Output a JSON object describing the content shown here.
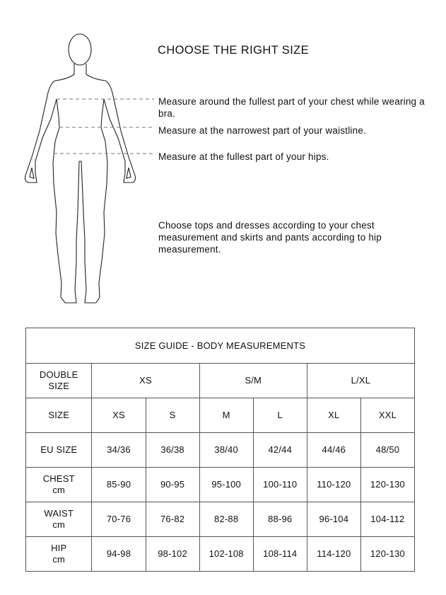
{
  "title": "CHOOSE THE RIGHT SIZE",
  "instructions": {
    "chest": "Measure around the fullest part of your chest while wearing a bra.",
    "waist": "Measure at the narrowest part of your waistline.",
    "hips": "Measure at the fullest part of your hips.",
    "advice": "Choose tops and dresses according to your chest measurement and skirts and pants according to hip measurement."
  },
  "table": {
    "title": "SIZE GUIDE - BODY MEASUREMENTS",
    "double_size": {
      "label": "DOUBLE SIZE",
      "values": [
        "XS",
        "S/M",
        "L/XL"
      ]
    },
    "rows": [
      {
        "label": "SIZE",
        "unit": "",
        "values": [
          "XS",
          "S",
          "M",
          "L",
          "XL",
          "XXL"
        ]
      },
      {
        "label": "EU SIZE",
        "unit": "",
        "values": [
          "34/36",
          "36/38",
          "38/40",
          "42/44",
          "44/46",
          "48/50"
        ]
      },
      {
        "label": "CHEST",
        "unit": "cm",
        "values": [
          "85-90",
          "90-95",
          "95-100",
          "100-110",
          "110-120",
          "120-130"
        ]
      },
      {
        "label": "WAIST",
        "unit": "cm",
        "values": [
          "70-76",
          "76-82",
          "82-88",
          "88-96",
          "96-104",
          "104-112"
        ]
      },
      {
        "label": "HIP",
        "unit": "cm",
        "values": [
          "94-98",
          "98-102",
          "102-108",
          "108-114",
          "114-120",
          "120-130"
        ]
      }
    ]
  }
}
